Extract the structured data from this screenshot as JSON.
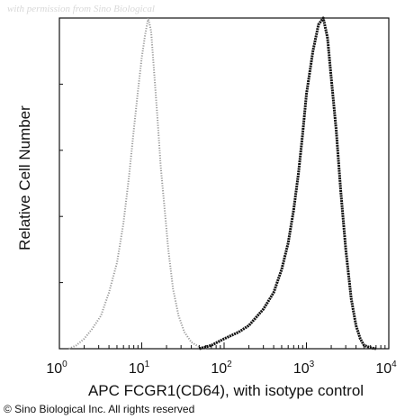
{
  "watermark": "with permission from Sino Biological",
  "copyright": "© Sino Biological Inc. All rights reserved",
  "colors": {
    "axis": "#111111",
    "isotype_series": "#9a9a9a",
    "sample_series": "#111111"
  },
  "chart_data": {
    "type": "line",
    "title": "",
    "xlabel": "APC FCGR1(CD64), with isotype control",
    "ylabel": "Relative Cell Number",
    "x_scale": "log",
    "xlim": [
      1,
      10000
    ],
    "ylim": [
      0,
      100
    ],
    "x_ticks": [
      {
        "base": "10",
        "exp": "0"
      },
      {
        "base": "10",
        "exp": "1"
      },
      {
        "base": "10",
        "exp": "2"
      },
      {
        "base": "10",
        "exp": "3"
      },
      {
        "base": "10",
        "exp": "4"
      }
    ],
    "grid": false,
    "legend": "none",
    "series": [
      {
        "style": "dotted-light",
        "x": [
          1.3,
          1.6,
          2.0,
          2.5,
          3.2,
          4.0,
          5.0,
          6.0,
          7.0,
          8.0,
          9.0,
          10.0,
          11.0,
          12.0,
          13.0,
          14.0,
          15.5,
          17.0,
          19.0,
          21.0,
          24.0,
          28.0,
          33.0,
          40.0,
          50.0,
          60.0
        ],
        "y": [
          0,
          1,
          3,
          6,
          10,
          17,
          26,
          38,
          52,
          66,
          78,
          88,
          95,
          100,
          96,
          85,
          70,
          55,
          42,
          30,
          18,
          10,
          5,
          2,
          0.5,
          0
        ]
      },
      {
        "style": "dotted-dark",
        "x": [
          50,
          70,
          100,
          150,
          200,
          300,
          400,
          500,
          600,
          700,
          800,
          900,
          1000,
          1200,
          1400,
          1600,
          1800,
          2000,
          2300,
          2600,
          3000,
          3500,
          4000,
          4500,
          5000,
          6000,
          7000
        ],
        "y": [
          0,
          1,
          3,
          5,
          7,
          12,
          17,
          24,
          32,
          42,
          53,
          65,
          77,
          90,
          98,
          100,
          94,
          82,
          66,
          48,
          30,
          15,
          7,
          3,
          1,
          0.3,
          0
        ]
      }
    ]
  }
}
